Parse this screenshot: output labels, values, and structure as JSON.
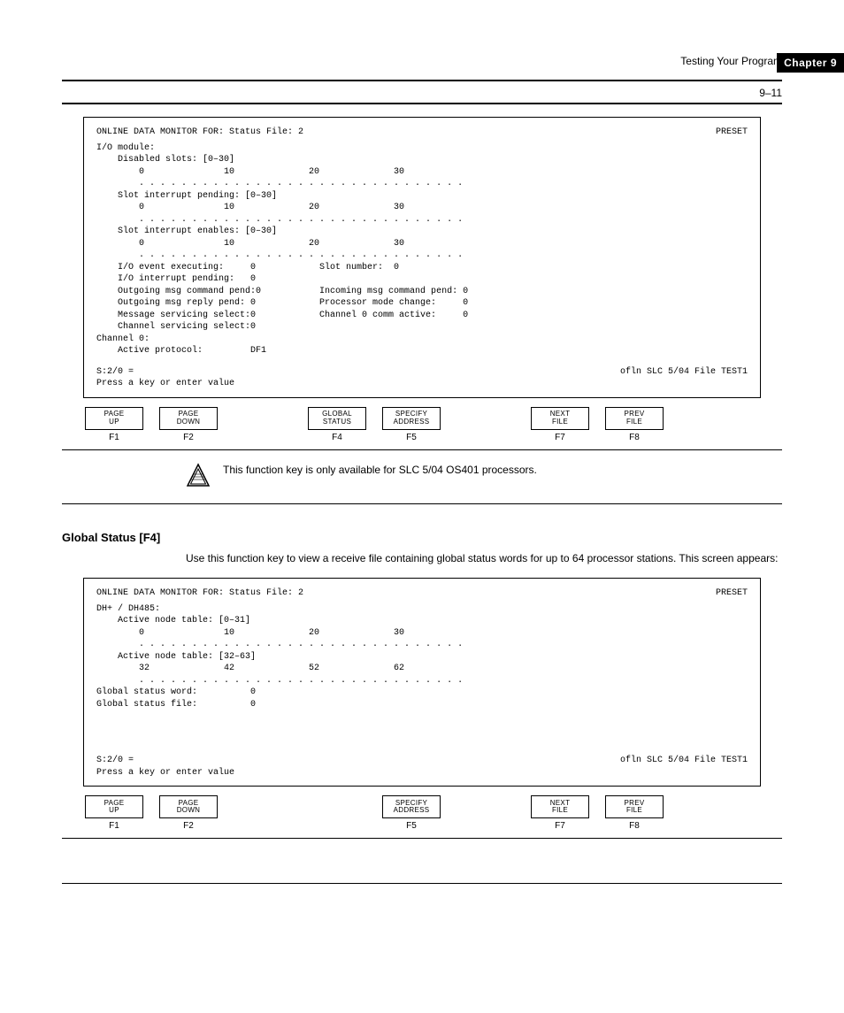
{
  "header": {
    "chapter_tab": "Chapter 9",
    "doc_title": "Testing Your Program",
    "page_number": "9–11"
  },
  "screenshot1": {
    "left_top": "ONLINE DATA MONITOR FOR: Status File: 2",
    "right_top": "PRESET",
    "lines": "I/O module:\n    Disabled slots: [0–30]\n        0               10              20              30\n        . . . . . . . . . . . . . . . . . . . . . . . . . . . . . . .\n    Slot interrupt pending: [0–30]\n        0               10              20              30\n        . . . . . . . . . . . . . . . . . . . . . . . . . . . . . . .\n    Slot interrupt enables: [0–30]\n        0               10              20              30\n        . . . . . . . . . . . . . . . . . . . . . . . . . . . . . . .\n    I/O event executing:     0            Slot number:  0\n    I/O interrupt pending:   0\n    Outgoing msg command pend:0           Incoming msg command pend: 0\n    Outgoing msg reply pend: 0            Processor mode change:     0\n    Message servicing select:0            Channel 0 comm active:     0\n    Channel servicing select:0\nChannel 0:\n    Active protocol:         DF1",
    "bottom_left": "S:2/0  =",
    "bottom_right": "ofln    SLC 5/04    File TEST1",
    "cmd_hint": "Press a key or enter value"
  },
  "screenshot2": {
    "left_top": "ONLINE DATA MONITOR FOR: Status File: 2",
    "right_top": "PRESET",
    "lines": "DH+ / DH485:\n    Active node table: [0–31]\n        0               10              20              30\n        . . . . . . . . . . . . . . . . . . . . . . . . . . . . . . .\n    Active node table: [32–63]\n        32              42              52              62\n        . . . . . . . . . . . . . . . . . . . . . . . . . . . . . . .\nGlobal status word:          0\nGlobal status file:          0",
    "bottom_left": "S:2/0  =",
    "bottom_right": "ofln    SLC 5/04    File TEST1",
    "cmd_hint": "Press a key or enter value"
  },
  "fkeys1": [
    {
      "label_top": "PAGE",
      "label_bot": "UP",
      "key": "F1"
    },
    {
      "label_top": "PAGE",
      "label_bot": "DOWN",
      "key": "F2"
    },
    null,
    {
      "label_top": "GLOBAL",
      "label_bot": "STATUS",
      "key": "F4"
    },
    {
      "label_top": "SPECIFY",
      "label_bot": "ADDRESS",
      "key": "F5"
    },
    null,
    {
      "label_top": "NEXT",
      "label_bot": "FILE",
      "key": "F7"
    },
    {
      "label_top": "PREV",
      "label_bot": "FILE",
      "key": "F8"
    }
  ],
  "fkeys2": [
    {
      "label_top": "PAGE",
      "label_bot": "UP",
      "key": "F1"
    },
    {
      "label_top": "PAGE",
      "label_bot": "DOWN",
      "key": "F2"
    },
    null,
    null,
    {
      "label_top": "SPECIFY",
      "label_bot": "ADDRESS",
      "key": "F5"
    },
    null,
    {
      "label_top": "NEXT",
      "label_bot": "FILE",
      "key": "F7"
    },
    {
      "label_top": "PREV",
      "label_bot": "FILE",
      "key": "F8"
    }
  ],
  "note": {
    "text": "This function key is only available for SLC 5/04 OS401 processors."
  },
  "global_status": {
    "heading": "Global Status [F4]",
    "body": "Use this function key to view a receive file containing global status words for up to 64 processor stations. This screen appears:"
  }
}
